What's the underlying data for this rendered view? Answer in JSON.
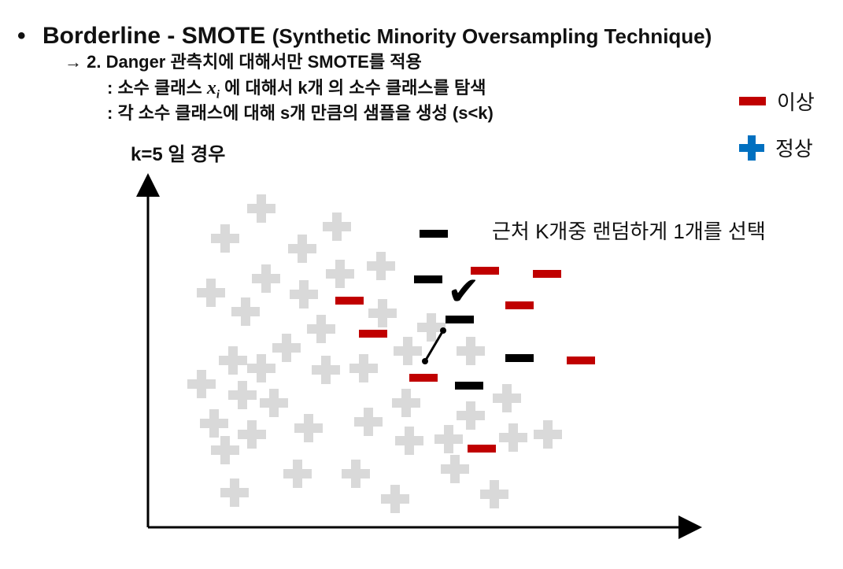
{
  "header": {
    "bullet": "•",
    "title": "Borderline - SMOTE",
    "subtitle": "(Synthetic Minority Oversampling Technique)",
    "step": "→ 2. Danger 관측치에 대해서만 SMOTE를 적용",
    "desc_1_pre": ": 소수 클래스 ",
    "desc_1_var": "x",
    "desc_1_sub": "i",
    "desc_1_post": " 에 대해서 k개 의 소수 클래스를 탐색",
    "desc_2": ": 각 소수 클래스에 대해 s개 만큼의 샘플을 생성 (s<k)"
  },
  "diagram": {
    "k_label": "k=5 일 경우",
    "select_label": "근처 K개중 랜덤하게 1개를 선택",
    "checkmark": "✔"
  },
  "legend": {
    "abnormal": "이상",
    "normal": "정상"
  },
  "colors": {
    "minority": "#c00000",
    "neighbor": "#000000",
    "majority": "#d9d9d9",
    "legend_majority": "#0070c0",
    "axis": "#000000"
  },
  "icons": {
    "majority_marker": "plus-icon",
    "minority_marker": "minus-icon",
    "selection_marker": "checkmark-icon"
  }
}
